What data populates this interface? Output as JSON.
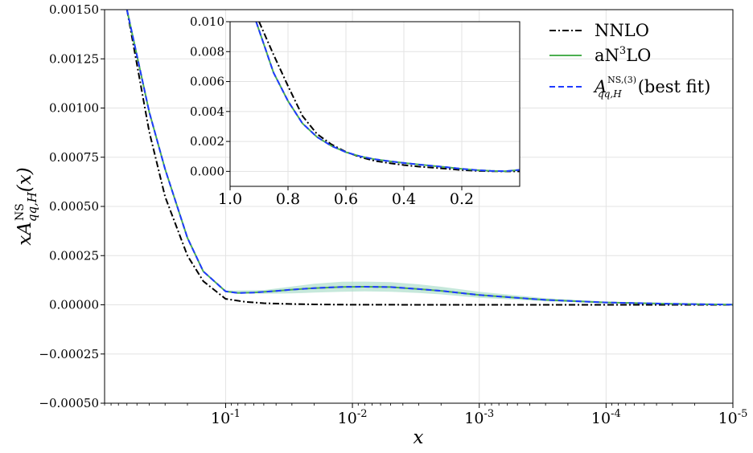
{
  "chart_data": [
    {
      "type": "line",
      "xscale": "log-reversed",
      "xlabel": "x",
      "ylabel": "xA_{qq,H}^{NS}(x)",
      "xlim": [
        0.9,
        1e-05
      ],
      "ylim": [
        -0.0005,
        0.0015
      ],
      "grid": true,
      "legend_position": "top-right",
      "y_ticks": [
        "−0.00050",
        "−0.00025",
        "0.00000",
        "0.00025",
        "0.00050",
        "0.00075",
        "0.00100",
        "0.00125",
        "0.00150"
      ],
      "x_ticks": [
        {
          "base": "10",
          "exp": "-1"
        },
        {
          "base": "10",
          "exp": "-2"
        },
        {
          "base": "10",
          "exp": "-3"
        },
        {
          "base": "10",
          "exp": "-4"
        },
        {
          "base": "10",
          "exp": "-5"
        }
      ],
      "series": [
        {
          "name": "NNLO",
          "style": "dash-dot",
          "color": "#000000",
          "x": [
            0.6,
            0.4,
            0.3,
            0.2,
            0.15,
            0.1,
            0.07,
            0.05,
            0.03,
            0.02,
            0.01,
            0.001,
            0.0001,
            1e-05
          ],
          "y": [
            0.0015,
            0.00088,
            0.00055,
            0.00025,
            0.00012,
            3e-05,
            1.5e-05,
            8e-06,
            4e-06,
            2e-06,
            5e-07,
            0.0,
            0.0,
            0.0
          ]
        },
        {
          "name": "aN³LO",
          "style": "solid",
          "color": "#4caf50",
          "x": [
            0.6,
            0.4,
            0.3,
            0.2,
            0.15,
            0.1,
            0.08,
            0.06,
            0.04,
            0.03,
            0.02,
            0.012,
            0.008,
            0.005,
            0.003,
            0.002,
            0.001,
            0.0003,
            0.0001,
            3e-05,
            1e-05
          ],
          "y": [
            0.0015,
            0.00098,
            0.00069,
            0.00034,
            0.00017,
            6.8e-05,
            6e-05,
            6.2e-05,
            7e-05,
            7.7e-05,
            8.5e-05,
            9.1e-05,
            9.2e-05,
            9e-05,
            8e-05,
            7.1e-05,
            5e-05,
            2.5e-05,
            1.2e-05,
            5e-06,
            1e-06
          ]
        },
        {
          "name": "A_{qq,H}^{NS,(3)} (best fit)",
          "style": "dashed",
          "color": "#1f3bff",
          "x": [
            0.6,
            0.4,
            0.3,
            0.2,
            0.15,
            0.1,
            0.08,
            0.06,
            0.04,
            0.03,
            0.02,
            0.012,
            0.008,
            0.005,
            0.003,
            0.002,
            0.001,
            0.0003,
            0.0001,
            3e-05,
            1e-05
          ],
          "y": [
            0.0015,
            0.00098,
            0.00069,
            0.00034,
            0.00017,
            6.8e-05,
            6e-05,
            6.2e-05,
            7e-05,
            7.7e-05,
            8.5e-05,
            9.1e-05,
            9.2e-05,
            9e-05,
            8e-05,
            7.1e-05,
            5e-05,
            2.5e-05,
            1.2e-05,
            5e-06,
            1e-06
          ]
        }
      ],
      "band": {
        "series": "aN³LO",
        "color": "#a8dcc8",
        "x": [
          0.1,
          0.05,
          0.03,
          0.02,
          0.012,
          0.008,
          0.005,
          0.003,
          0.002,
          0.001,
          0.0003,
          0.0001,
          3e-05,
          1e-05
        ],
        "lower": [
          6.5e-05,
          5.6e-05,
          5.8e-05,
          6.2e-05,
          6.6e-05,
          6.8e-05,
          6.6e-05,
          6e-05,
          5.3e-05,
          3.6e-05,
          1.8e-05,
          8e-06,
          3e-06,
          5e-07
        ],
        "upper": [
          7.2e-05,
          7.5e-05,
          9.3e-05,
          0.000107,
          0.000117,
          0.000118,
          0.000115,
          0.000104,
          9.2e-05,
          6.6e-05,
          3.4e-05,
          1.6e-05,
          7e-06,
          2e-06
        ]
      },
      "legend": [
        {
          "label": "NNLO"
        },
        {
          "label_prefix": "aN",
          "label_sup": "3",
          "label_suffix": "LO"
        },
        {
          "label_base": "A",
          "label_sup": "NS,(3)",
          "label_sub": "qq,H",
          "label_suffix": "(best fit)"
        }
      ]
    },
    {
      "type": "line",
      "xscale": "linear-reversed",
      "xlim": [
        1.0,
        0.0
      ],
      "ylim": [
        -0.001,
        0.01
      ],
      "grid": true,
      "y_ticks": [
        "0.000",
        "0.002",
        "0.004",
        "0.006",
        "0.008",
        "0.010"
      ],
      "x_ticks": [
        "1.0",
        "0.8",
        "0.6",
        "0.4",
        "0.2"
      ],
      "series": [
        {
          "name": "NNLO",
          "style": "dash-dot",
          "color": "#000000",
          "x": [
            0.9,
            0.85,
            0.8,
            0.75,
            0.7,
            0.65,
            0.6,
            0.55,
            0.5,
            0.45,
            0.4,
            0.35,
            0.3,
            0.25,
            0.2,
            0.15,
            0.1,
            0.05,
            0.0
          ],
          "y": [
            0.01,
            0.0078,
            0.0057,
            0.0037,
            0.0025,
            0.0018,
            0.0013,
            0.00095,
            0.0007,
            0.00055,
            0.00042,
            0.00032,
            0.00025,
            0.00017,
            9e-05,
            4e-05,
            1e-05,
            0.0,
            0.0
          ]
        },
        {
          "name": "aN³LO",
          "style": "solid",
          "color": "#4caf50",
          "x": [
            0.91,
            0.85,
            0.8,
            0.75,
            0.7,
            0.65,
            0.6,
            0.55,
            0.5,
            0.45,
            0.4,
            0.35,
            0.3,
            0.25,
            0.2,
            0.15,
            0.1,
            0.05,
            0.0
          ],
          "y": [
            0.01,
            0.0066,
            0.0047,
            0.0032,
            0.0023,
            0.0017,
            0.00128,
            0.001,
            0.00081,
            0.00068,
            0.00056,
            0.00046,
            0.00037,
            0.00027,
            0.00017,
            9e-05,
            3e-05,
            1e-05,
            0.0001
          ]
        },
        {
          "name": "A_{qq,H}^{NS,(3)} (best fit)",
          "style": "dashed",
          "color": "#1f3bff",
          "x": [
            0.91,
            0.85,
            0.8,
            0.75,
            0.7,
            0.65,
            0.6,
            0.55,
            0.5,
            0.45,
            0.4,
            0.35,
            0.3,
            0.25,
            0.2,
            0.15,
            0.1,
            0.05,
            0.0
          ],
          "y": [
            0.01,
            0.0066,
            0.0047,
            0.0032,
            0.0023,
            0.0017,
            0.00128,
            0.001,
            0.00081,
            0.00068,
            0.00056,
            0.00046,
            0.00037,
            0.00027,
            0.00017,
            9e-05,
            3e-05,
            1e-05,
            0.0001
          ]
        }
      ]
    }
  ]
}
